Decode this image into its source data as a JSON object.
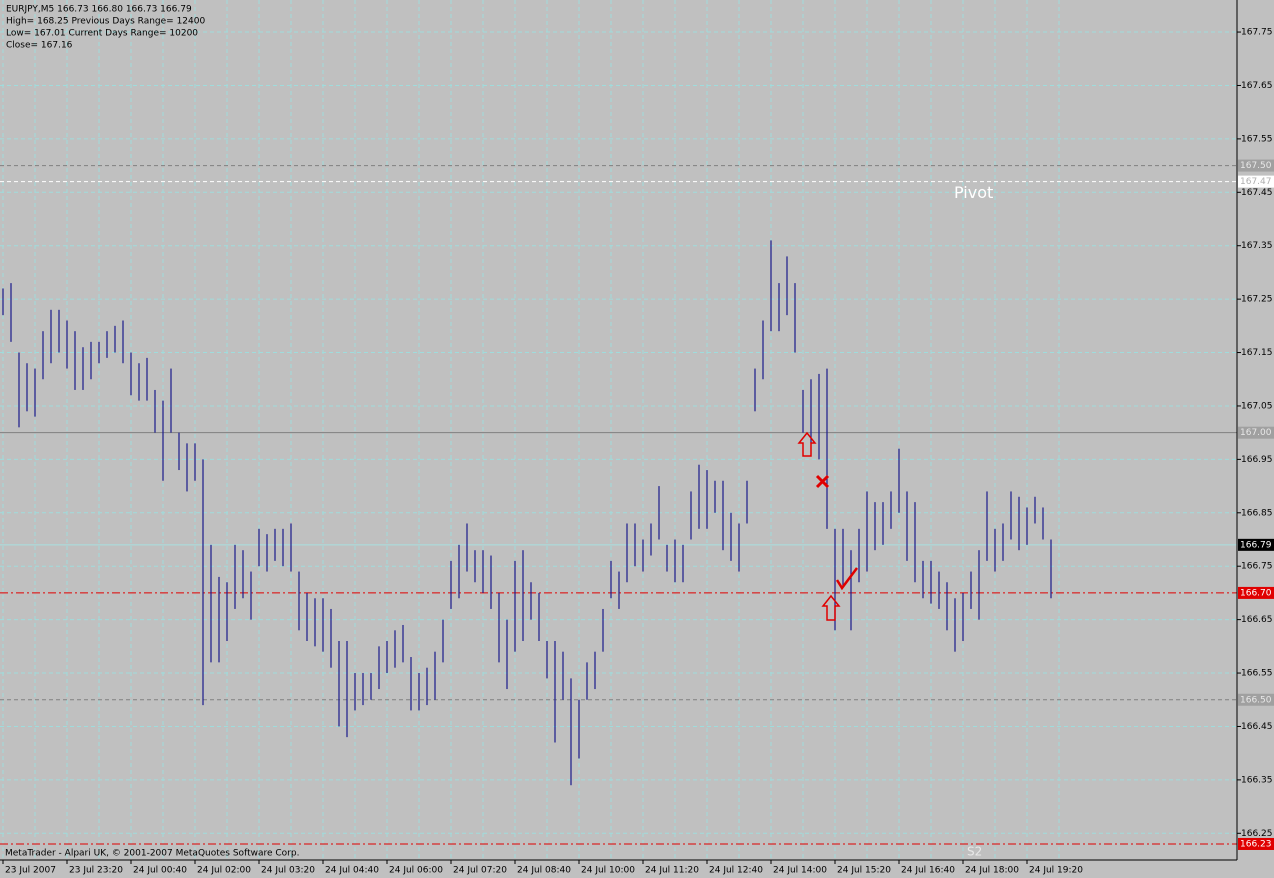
{
  "chart_data": {
    "type": "ohlc",
    "info": [
      "EURJPY,M5  166.73 166.80 166.73 166.79",
      "High= 168.25    Previous Days Range= 12400",
      "Low= 167.01    Current Days Range= 10200",
      "Close= 167.16"
    ],
    "footer": "MetaTrader - Alpari UK, © 2001-2007 MetaQuotes Software Corp.",
    "color": "#1a1a8c",
    "grid": true,
    "ylim": [
      166.2,
      167.81
    ],
    "yticks": [
      166.25,
      166.35,
      166.45,
      166.55,
      166.65,
      166.75,
      166.85,
      166.95,
      167.05,
      167.15,
      167.25,
      167.35,
      167.45,
      167.55,
      167.65,
      167.75
    ],
    "xlabels": [
      "23 Jul 2007",
      "23 Jul 23:20",
      "24 Jul 00:40",
      "24 Jul 02:00",
      "24 Jul 03:20",
      "24 Jul 04:40",
      "24 Jul 06:00",
      "24 Jul 07:20",
      "24 Jul 08:40",
      "24 Jul 10:00",
      "24 Jul 11:20",
      "24 Jul 12:40",
      "24 Jul 14:00",
      "24 Jul 15:20",
      "24 Jul 16:40",
      "24 Jul 18:00",
      "24 Jul 19:20"
    ],
    "high": [
      167.27,
      167.28,
      167.15,
      167.13,
      167.12,
      167.19,
      167.23,
      167.23,
      167.21,
      167.19,
      167.16,
      167.17,
      167.17,
      167.19,
      167.2,
      167.21,
      167.15,
      167.13,
      167.14,
      167.08,
      167.06,
      167.12,
      167.0,
      166.98,
      166.98,
      166.95,
      166.79,
      166.73,
      166.72,
      166.79,
      166.78,
      166.74,
      166.82,
      166.81,
      166.82,
      166.82,
      166.83,
      166.74,
      166.7,
      166.69,
      166.69,
      166.67,
      166.61,
      166.61,
      166.55,
      166.55,
      166.55,
      166.6,
      166.61,
      166.63,
      166.64,
      166.58,
      166.55,
      166.56,
      166.59,
      166.65,
      166.76,
      166.79,
      166.83,
      166.78,
      166.78,
      166.77,
      166.7,
      166.65,
      166.76,
      166.78,
      166.72,
      166.7,
      166.61,
      166.61,
      166.59,
      166.54,
      166.5,
      166.57,
      166.59,
      166.67,
      166.76,
      166.74,
      166.83,
      166.83,
      166.8,
      166.83,
      166.9,
      166.79,
      166.8,
      166.79,
      166.89,
      166.94,
      166.93,
      166.91,
      166.91,
      166.85,
      166.83,
      166.91,
      167.12,
      167.21,
      167.36,
      167.28,
      167.33,
      167.28,
      167.08,
      167.1,
      167.11,
      167.12,
      166.82,
      166.82,
      166.78,
      166.82,
      166.89,
      166.87,
      166.87,
      166.89,
      166.97,
      166.89,
      166.87,
      166.76,
      166.76,
      166.74,
      166.72,
      166.69,
      166.7,
      166.74,
      166.78,
      166.89,
      166.82,
      166.83,
      166.89,
      166.88,
      166.86,
      166.88,
      166.86,
      166.8
    ],
    "low": [
      167.22,
      167.17,
      167.01,
      167.04,
      167.03,
      167.1,
      167.13,
      167.15,
      167.12,
      167.08,
      167.08,
      167.1,
      167.13,
      167.14,
      167.15,
      167.13,
      167.07,
      167.06,
      167.06,
      167.0,
      166.91,
      167.0,
      166.93,
      166.89,
      166.91,
      166.49,
      166.57,
      166.57,
      166.61,
      166.67,
      166.69,
      166.65,
      166.75,
      166.74,
      166.76,
      166.75,
      166.74,
      166.63,
      166.61,
      166.6,
      166.59,
      166.56,
      166.45,
      166.43,
      166.48,
      166.49,
      166.5,
      166.52,
      166.55,
      166.56,
      166.57,
      166.48,
      166.48,
      166.49,
      166.5,
      166.57,
      166.67,
      166.69,
      166.74,
      166.72,
      166.7,
      166.67,
      166.57,
      166.52,
      166.59,
      166.61,
      166.65,
      166.61,
      166.54,
      166.42,
      166.5,
      166.34,
      166.39,
      166.5,
      166.52,
      166.59,
      166.69,
      166.67,
      166.72,
      166.75,
      166.74,
      166.77,
      166.8,
      166.74,
      166.72,
      166.72,
      166.8,
      166.82,
      166.82,
      166.85,
      166.78,
      166.76,
      166.74,
      166.83,
      167.04,
      167.1,
      167.19,
      167.19,
      167.22,
      167.15,
      167.0,
      166.98,
      166.95,
      166.82,
      166.63,
      166.71,
      166.63,
      166.72,
      166.74,
      166.78,
      166.79,
      166.82,
      166.85,
      166.76,
      166.72,
      166.69,
      166.68,
      166.67,
      166.63,
      166.59,
      166.61,
      166.67,
      166.65,
      166.76,
      166.74,
      166.76,
      166.8,
      166.78,
      166.79,
      166.83,
      166.8,
      166.69
    ],
    "levels": [
      {
        "value": 167.5,
        "label": "167.50",
        "color": "#808080",
        "style": "dashed",
        "label_bg": "#a0a0a0",
        "label_fg": "#e8e8e8"
      },
      {
        "value": 167.47,
        "color": "#ffffff",
        "style": "dashed",
        "label_bg": "#ffffff",
        "label_fg": "#b0b0b0"
      },
      {
        "value": 167.0,
        "label": "167.00",
        "color": "#808080",
        "style": "solid",
        "label_bg": "#a0a0a0",
        "label_fg": "#e8e8e8"
      },
      {
        "value": 166.79,
        "color": "#a8e0e0",
        "style": "solid",
        "label_bg": "#000000",
        "label_fg": "#ffffff"
      },
      {
        "value": 166.7,
        "label": "166.70",
        "color": "#e00000",
        "style": "dashdot",
        "label_bg": "#e00000",
        "label_fg": "#ffffff"
      },
      {
        "value": 166.5,
        "label": "166.50",
        "color": "#808080",
        "style": "dashed",
        "label_bg": "#a0a0a0",
        "label_fg": "#e8e8e8"
      },
      {
        "value": 166.23,
        "color": "#e00000",
        "style": "dashdot",
        "label_bg": "#e00000",
        "label_fg": "#ffffff"
      }
    ],
    "annotations": [
      {
        "text": "Pivot",
        "color": "#ffffff"
      },
      {
        "text": "S2",
        "color": "#e8e8e8"
      }
    ]
  }
}
